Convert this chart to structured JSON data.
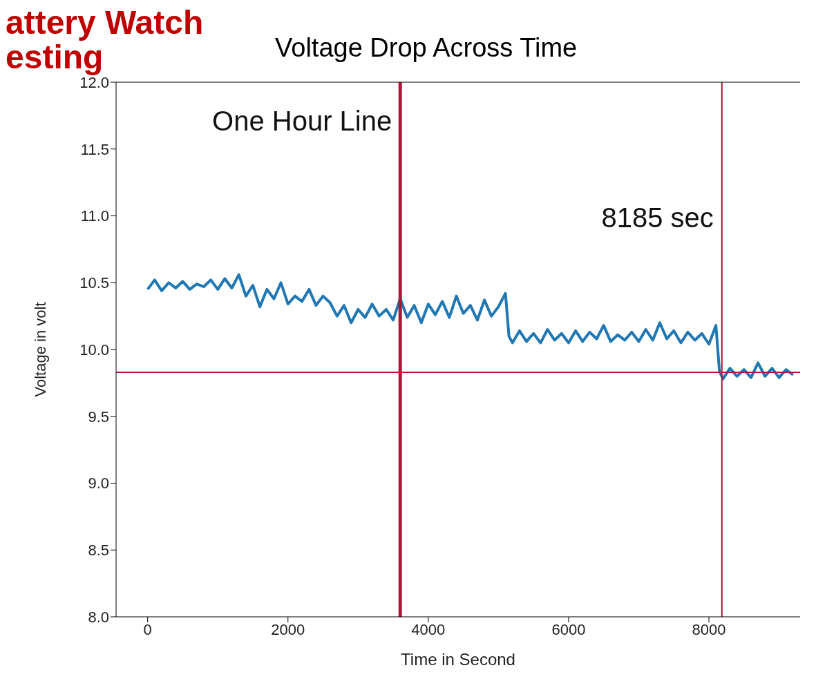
{
  "chart_data": {
    "type": "line",
    "title": "Voltage Drop Across Time",
    "xlabel": "Time in Second",
    "ylabel": "Voltage in volt",
    "annotations": [
      "attery Watch",
      "esting"
    ],
    "x": [
      0,
      100,
      200,
      300,
      400,
      500,
      600,
      700,
      800,
      900,
      1000,
      1100,
      1200,
      1300,
      1400,
      1500,
      1600,
      1700,
      1800,
      1900,
      2000,
      2100,
      2200,
      2300,
      2400,
      2500,
      2600,
      2700,
      2800,
      2900,
      3000,
      3100,
      3200,
      3300,
      3400,
      3500,
      3600,
      3700,
      3800,
      3900,
      4000,
      4100,
      4200,
      4300,
      4400,
      4500,
      4600,
      4700,
      4800,
      4900,
      5000,
      5100,
      5150,
      5200,
      5300,
      5400,
      5500,
      5600,
      5700,
      5800,
      5900,
      6000,
      6100,
      6200,
      6300,
      6400,
      6500,
      6600,
      6700,
      6800,
      6900,
      7000,
      7100,
      7200,
      7300,
      7400,
      7500,
      7600,
      7700,
      7800,
      7900,
      8000,
      8100,
      8150,
      8200,
      8300,
      8400,
      8500,
      8600,
      8700,
      8800,
      8900,
      9000,
      9100,
      9200
    ],
    "series": [
      {
        "color": "#1f77b4",
        "values": [
          10.45,
          10.52,
          10.44,
          10.5,
          10.46,
          10.51,
          10.45,
          10.49,
          10.47,
          10.52,
          10.45,
          10.53,
          10.46,
          10.56,
          10.4,
          10.48,
          10.32,
          10.45,
          10.38,
          10.5,
          10.34,
          10.4,
          10.36,
          10.45,
          10.33,
          10.4,
          10.35,
          10.25,
          10.33,
          10.2,
          10.3,
          10.24,
          10.34,
          10.25,
          10.3,
          10.22,
          10.38,
          10.24,
          10.33,
          10.2,
          10.34,
          10.26,
          10.36,
          10.24,
          10.4,
          10.27,
          10.33,
          10.22,
          10.37,
          10.25,
          10.32,
          10.42,
          10.1,
          10.05,
          10.14,
          10.06,
          10.12,
          10.05,
          10.15,
          10.07,
          10.12,
          10.05,
          10.14,
          10.06,
          10.13,
          10.08,
          10.18,
          10.06,
          10.11,
          10.07,
          10.13,
          10.06,
          10.15,
          10.07,
          10.2,
          10.08,
          10.14,
          10.05,
          10.13,
          10.07,
          10.12,
          10.04,
          10.18,
          9.84,
          9.78,
          9.86,
          9.8,
          9.85,
          9.79,
          9.9,
          9.8,
          9.86,
          9.79,
          9.85,
          9.81
        ]
      }
    ],
    "xlim": [
      -450,
      9300
    ],
    "xticks": [
      0,
      2000,
      4000,
      6000,
      8000
    ],
    "ylim": [
      8,
      12
    ],
    "yticks": [
      {
        "value": 8,
        "label": "8.0"
      },
      {
        "value": 8.5,
        "label": "8.5"
      },
      {
        "value": 9,
        "label": "9.0"
      },
      {
        "value": 9.5,
        "label": "9.5"
      },
      {
        "value": 10,
        "label": "10.0"
      },
      {
        "value": 10.5,
        "label": "10.5"
      },
      {
        "value": 11,
        "label": "11.0"
      },
      {
        "value": 11.5,
        "label": "11.5"
      },
      {
        "value": 12,
        "label": "12.0"
      }
    ],
    "ref_lines": [
      {
        "axis": "x",
        "value": 3600,
        "label": "One Hour Line",
        "color": "#b5123a"
      },
      {
        "axis": "x",
        "value": 8185,
        "label": "8185 sec",
        "color": "#b5123a"
      },
      {
        "axis": "y",
        "value": 9.83,
        "label": null,
        "color": "#b5123a"
      }
    ],
    "marker": "none",
    "line_style": "solid"
  }
}
